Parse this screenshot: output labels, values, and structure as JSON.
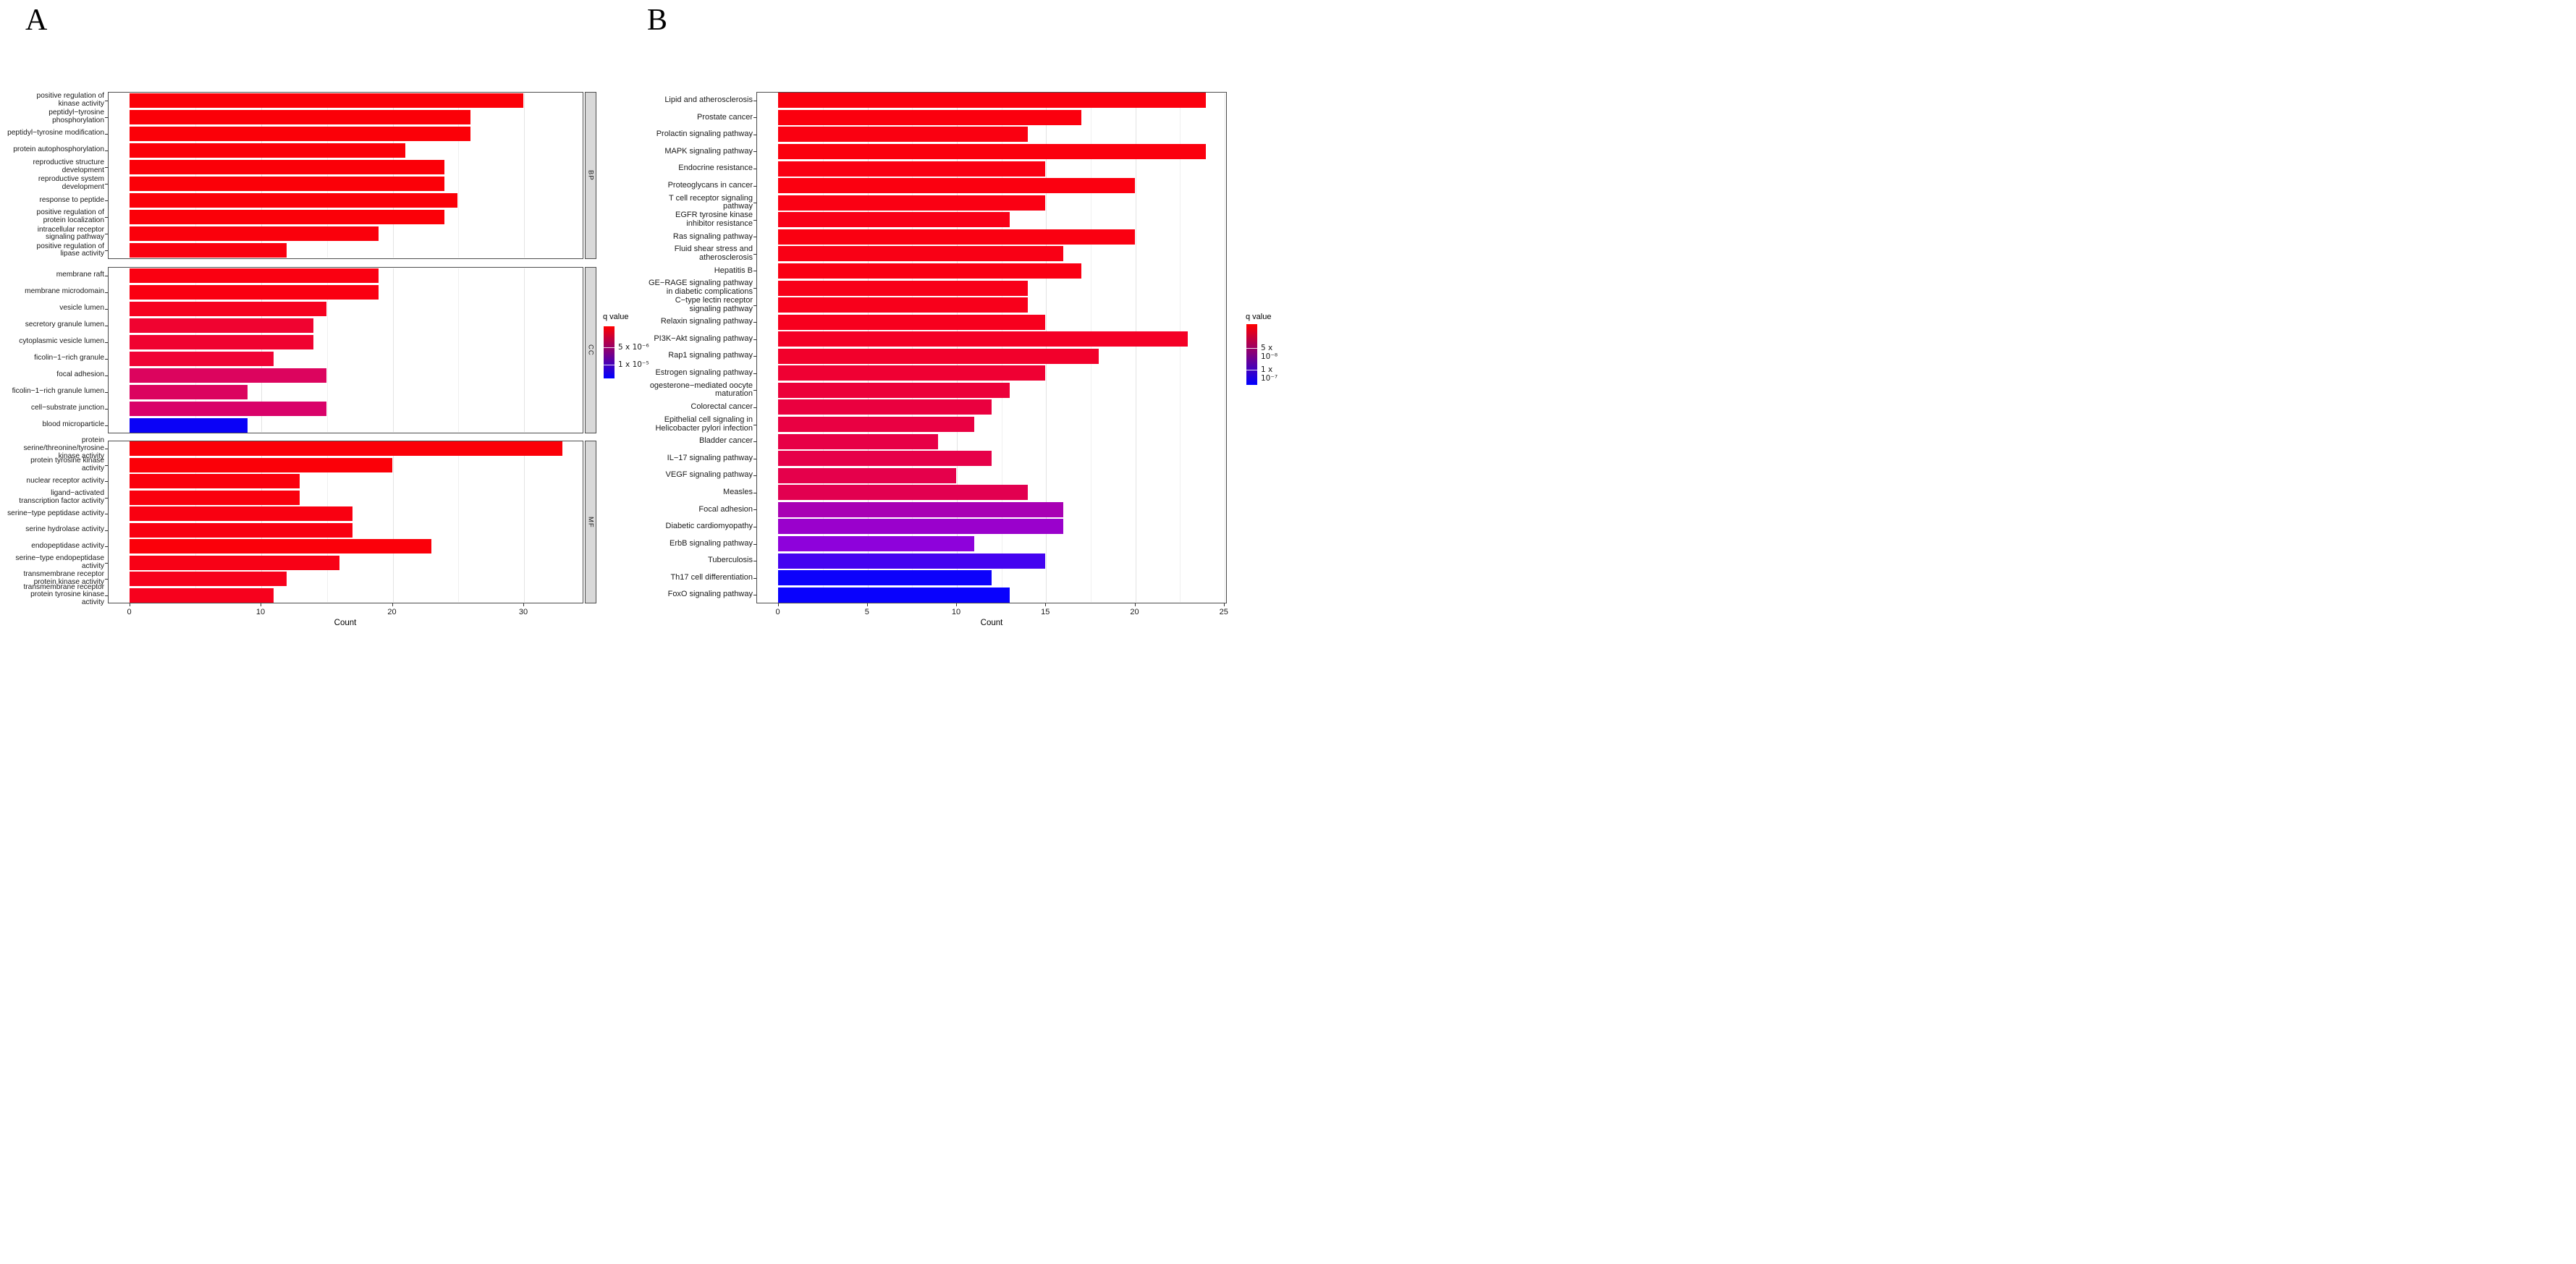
{
  "figure": {
    "panel_a_letter": "A",
    "panel_b_letter": "B"
  },
  "chart_data": [
    {
      "id": "go-enrichment",
      "type": "bar",
      "orientation": "horizontal",
      "xlabel": "Count",
      "xlim": [
        0,
        34.5
      ],
      "x_ticks": [
        0,
        10,
        20,
        30
      ],
      "x_minor_ticks": [
        5,
        15,
        25
      ],
      "grid": true,
      "legend": {
        "title": "q value",
        "position": "right",
        "top_color": "#FF0000",
        "bottom_color": "#0000FF",
        "labels": [
          "5 x 10⁻⁶",
          "1 x 10⁻⁵"
        ]
      },
      "facets": [
        {
          "label": "BP",
          "rows": [
            {
              "category": "positive regulation of\nkinase activity",
              "value": 30,
              "color": "#FB0008"
            },
            {
              "category": "peptidyl−tyrosine\nphosphorylation",
              "value": 26,
              "color": "#FB0008"
            },
            {
              "category": "peptidyl−tyrosine modification",
              "value": 26,
              "color": "#FB0008"
            },
            {
              "category": "protein autophosphorylation",
              "value": 21,
              "color": "#FB0008"
            },
            {
              "category": "reproductive structure\ndevelopment",
              "value": 24,
              "color": "#FB0008"
            },
            {
              "category": "reproductive system\ndevelopment",
              "value": 24,
              "color": "#FB0008"
            },
            {
              "category": "response to peptide",
              "value": 25,
              "color": "#FB0008"
            },
            {
              "category": "positive regulation of\nprotein localization",
              "value": 24,
              "color": "#FB0008"
            },
            {
              "category": "intracellular receptor\nsignaling pathway",
              "value": 19,
              "color": "#FA000C"
            },
            {
              "category": "positive regulation of\nlipase activity",
              "value": 12,
              "color": "#FA000E"
            }
          ]
        },
        {
          "label": "CC",
          "rows": [
            {
              "category": "membrane raft",
              "value": 19,
              "color": "#FA0011"
            },
            {
              "category": "membrane microdomain",
              "value": 19,
              "color": "#FA0011"
            },
            {
              "category": "vesicle lumen",
              "value": 15,
              "color": "#F6021F"
            },
            {
              "category": "secretory granule lumen",
              "value": 14,
              "color": "#F00330"
            },
            {
              "category": "cytoplasmic vesicle lumen",
              "value": 14,
              "color": "#F00330"
            },
            {
              "category": "ficolin−1−rich granule",
              "value": 11,
              "color": "#F00335"
            },
            {
              "category": "focal adhesion",
              "value": 15,
              "color": "#DC045E"
            },
            {
              "category": "ficolin−1−rich granule lumen",
              "value": 9,
              "color": "#DB045F"
            },
            {
              "category": "cell−substrate junction",
              "value": 15,
              "color": "#D90269"
            },
            {
              "category": "blood microparticle",
              "value": 9,
              "color": "#0A02F7"
            }
          ]
        },
        {
          "label": "MF",
          "rows": [
            {
              "category": "protein\nserine/threonine/tyrosine\nkinase activity",
              "value": 33,
              "color": "#FB0008"
            },
            {
              "category": "protein tyrosine kinase\nactivity",
              "value": 20,
              "color": "#FB0008"
            },
            {
              "category": "nuclear receptor activity",
              "value": 13,
              "color": "#FA000D"
            },
            {
              "category": "ligand−activated\ntranscription factor activity",
              "value": 13,
              "color": "#FA000D"
            },
            {
              "category": "serine−type peptidase activity",
              "value": 17,
              "color": "#F90011"
            },
            {
              "category": "serine hydrolase activity",
              "value": 17,
              "color": "#F90011"
            },
            {
              "category": "endopeptidase activity",
              "value": 23,
              "color": "#FB000A"
            },
            {
              "category": "serine−type endopeptidase\nactivity",
              "value": 16,
              "color": "#F80116"
            },
            {
              "category": "transmembrane receptor\nprotein kinase activity",
              "value": 12,
              "color": "#F7011B"
            },
            {
              "category": "transmembrane receptor\nprotein tyrosine kinase\nactivity",
              "value": 11,
              "color": "#F7011D"
            }
          ]
        }
      ]
    },
    {
      "id": "kegg-enrichment",
      "type": "bar",
      "orientation": "horizontal",
      "xlabel": "Count",
      "xlim": [
        0,
        25.2
      ],
      "x_ticks": [
        0,
        5,
        10,
        15,
        20,
        25
      ],
      "x_minor_ticks": [
        2.5,
        7.5,
        12.5,
        17.5,
        22.5
      ],
      "grid": true,
      "legend": {
        "title": "q value",
        "position": "right",
        "top_color": "#FF0000",
        "bottom_color": "#0000FF",
        "labels": [
          "5 x 10⁻⁸",
          "1 x 10⁻⁷"
        ]
      },
      "rows": [
        {
          "category": "Lipid and atherosclerosis",
          "value": 24,
          "color": "#FB000E"
        },
        {
          "category": "Prostate cancer",
          "value": 17,
          "color": "#FB000E"
        },
        {
          "category": "Prolactin signaling pathway",
          "value": 14,
          "color": "#FA0011"
        },
        {
          "category": "MAPK signaling pathway",
          "value": 24,
          "color": "#FB000E"
        },
        {
          "category": "Endocrine resistance",
          "value": 15,
          "color": "#FA0012"
        },
        {
          "category": "Proteoglycans in cancer",
          "value": 20,
          "color": "#FB0010"
        },
        {
          "category": "T cell receptor signaling\npathway",
          "value": 15,
          "color": "#FA0013"
        },
        {
          "category": "EGFR tyrosine kinase\ninhibitor resistance",
          "value": 13,
          "color": "#F90017"
        },
        {
          "category": "Ras signaling pathway",
          "value": 20,
          "color": "#FA0011"
        },
        {
          "category": "Fluid shear stress and\natherosclerosis",
          "value": 16,
          "color": "#F90015"
        },
        {
          "category": "Hepatitis B",
          "value": 17,
          "color": "#FA0013"
        },
        {
          "category": "GE−RAGE signaling pathway\nin diabetic complications",
          "value": 14,
          "color": "#F80019"
        },
        {
          "category": "C−type lectin receptor\nsignaling pathway",
          "value": 14,
          "color": "#F8001B"
        },
        {
          "category": "Relaxin signaling pathway",
          "value": 15,
          "color": "#F7001E"
        },
        {
          "category": "PI3K−Akt signaling pathway",
          "value": 23,
          "color": "#F40026"
        },
        {
          "category": "Rap1 signaling pathway",
          "value": 18,
          "color": "#F2002B"
        },
        {
          "category": "Estrogen signaling pathway",
          "value": 15,
          "color": "#EF0033"
        },
        {
          "category": "ogesterone−mediated oocyte\nmaturation",
          "value": 13,
          "color": "#EC003A"
        },
        {
          "category": "Colorectal cancer",
          "value": 12,
          "color": "#EA003F"
        },
        {
          "category": "Epithelial cell signaling in\nHelicobacter pylori infection",
          "value": 11,
          "color": "#E90042"
        },
        {
          "category": "Bladder cancer",
          "value": 9,
          "color": "#E70046"
        },
        {
          "category": "IL−17 signaling pathway",
          "value": 12,
          "color": "#E60049"
        },
        {
          "category": "VEGF signaling pathway",
          "value": 10,
          "color": "#E5004B"
        },
        {
          "category": "Measles",
          "value": 14,
          "color": "#E20050"
        },
        {
          "category": "Focal adhesion",
          "value": 16,
          "color": "#A800B4"
        },
        {
          "category": "Diabetic cardiomyopathy",
          "value": 16,
          "color": "#9A01CC"
        },
        {
          "category": "ErbB signaling pathway",
          "value": 11,
          "color": "#8E02DB"
        },
        {
          "category": "Tuberculosis",
          "value": 15,
          "color": "#4403F0"
        },
        {
          "category": "Th17 cell differentiation",
          "value": 12,
          "color": "#0D02FB"
        },
        {
          "category": "FoxO signaling pathway",
          "value": 13,
          "color": "#0902FD"
        }
      ]
    }
  ]
}
